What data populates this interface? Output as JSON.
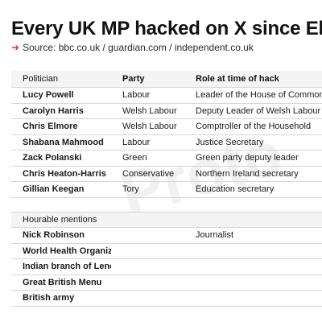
{
  "title": "Every UK MP hacked on X since Elon Musk",
  "source": {
    "arrow": "➜",
    "text": "Source: bbc.co.uk / guardian.com / independent.co.uk"
  },
  "watermark": "Proto",
  "table": {
    "headers": [
      "Politician",
      "Party",
      "Role at time of hack"
    ],
    "rows": [
      {
        "name": "Lucy Powell",
        "party": "Labour",
        "role": "Leader of the House of Commons"
      },
      {
        "name": "Carolyn Harris",
        "party": "Welsh Labour",
        "role": "Deputy Leader of Welsh Labour"
      },
      {
        "name": "Chris Elmore",
        "party": "Welsh Labour",
        "role": "Comptroller of the Household"
      },
      {
        "name": "Shabana Mahmood",
        "party": "Labour",
        "role": "Justice Secretary"
      },
      {
        "name": "Zack Polanski",
        "party": "Green",
        "role": "Green party deputy leader"
      },
      {
        "name": "Chris Heaton-Harris",
        "party": "Conservative",
        "role": "Northern Ireland secretary"
      },
      {
        "name": "Gillian Keegan",
        "party": "Tory",
        "role": "Education secretary"
      }
    ],
    "mentions_header": "Hourable mentions",
    "mentions": [
      {
        "name": "Nick Robinson",
        "party": "",
        "role": "Journalist"
      },
      {
        "name": "World Health Organization",
        "party": "",
        "role": ""
      },
      {
        "name": "Indian branch of Lenevo",
        "party": "",
        "role": ""
      },
      {
        "name": "Great British Menu",
        "party": "",
        "role": ""
      },
      {
        "name": "British army",
        "party": "",
        "role": ""
      }
    ]
  }
}
